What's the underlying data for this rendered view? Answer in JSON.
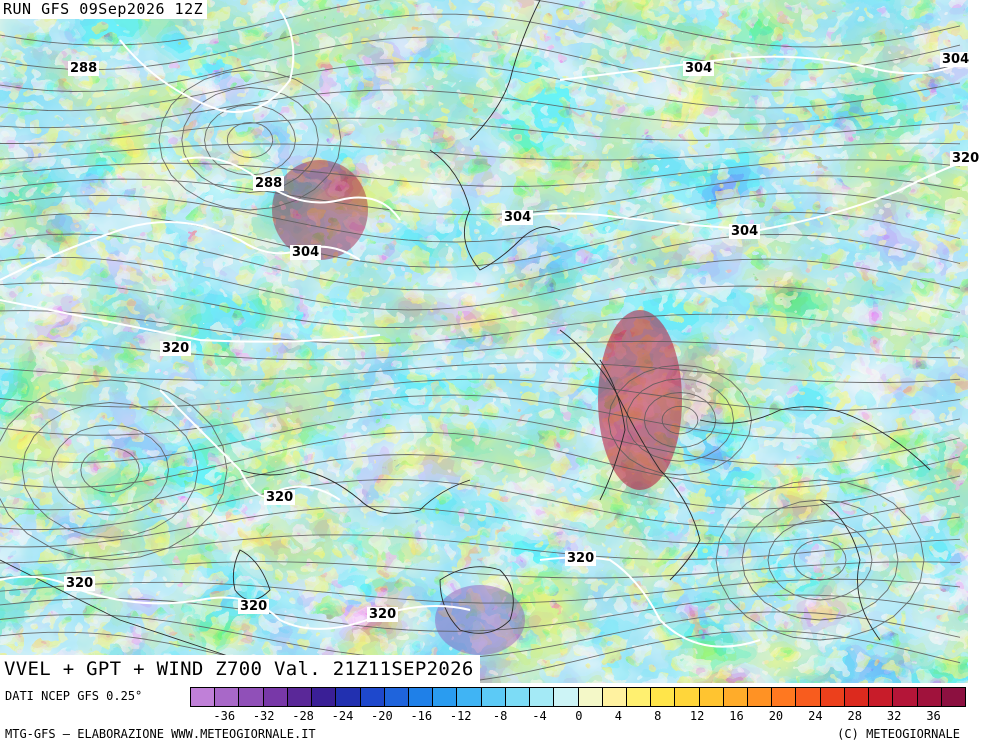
{
  "header": {
    "run_title": "RUN GFS 09Sep2026 12Z",
    "product_title": "VVEL + GPT + WIND Z700 Val. 21Z11SEP2026"
  },
  "contour_labels": [
    "288",
    "304",
    "304",
    "288",
    "304",
    "304",
    "304",
    "320",
    "320",
    "320",
    "320",
    "320",
    "320",
    "320"
  ],
  "footer": {
    "data_source": "DATI NCEP GFS 0.25°",
    "credit_left": "MTG-GFS — ELABORAZIONE WWW.METEOGIORNALE.IT",
    "credit_right": "(C) METEOGIORNALE"
  },
  "legend": {
    "tick_labels": [
      "-36",
      "-32",
      "-28",
      "-24",
      "-20",
      "-16",
      "-12",
      "-8",
      "-4",
      "0",
      "4",
      "8",
      "12",
      "16",
      "20",
      "24",
      "28",
      "32",
      "36"
    ],
    "colors": [
      "#c080d8",
      "#a868c8",
      "#9050b8",
      "#7838a8",
      "#5a2898",
      "#3a1f96",
      "#2230b0",
      "#1e48cc",
      "#1f64dc",
      "#1f80e8",
      "#2a9cf0",
      "#40b4f4",
      "#5ccaf6",
      "#7cdcf6",
      "#a4eaf6",
      "#cdf4f6",
      "#f4f8c8",
      "#fff2a0",
      "#fff070",
      "#ffe54a",
      "#ffd63a",
      "#ffc430",
      "#ffac2a",
      "#ff9224",
      "#ff7820",
      "#f85c1e",
      "#ec401c",
      "#dc2a1e",
      "#c81c2a",
      "#b41538",
      "#a0123c",
      "#8c1040"
    ]
  },
  "colors": {
    "contour_line": "#ffffff",
    "streamline": "#5a5a5a",
    "coastline": "#2a2a2a"
  }
}
